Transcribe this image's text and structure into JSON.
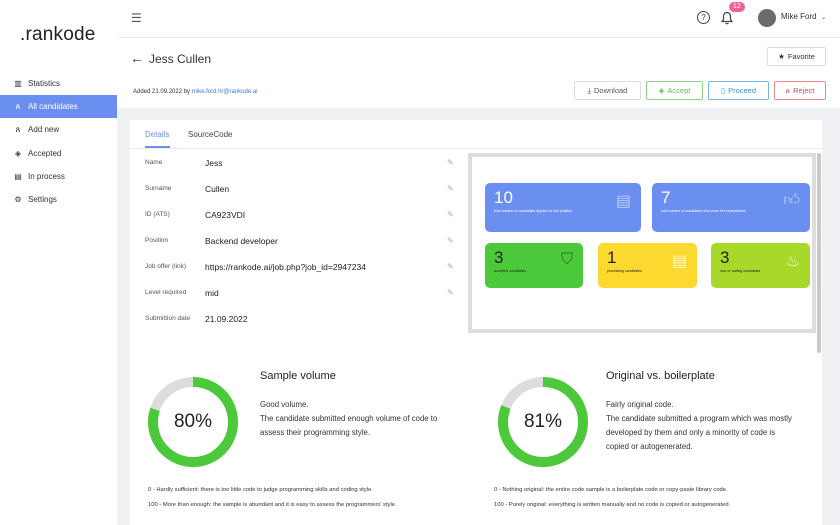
{
  "logo": ".rankode",
  "sidebar": {
    "items": [
      {
        "label": "Statistics",
        "icon": "bar-chart-icon"
      },
      {
        "label": "All candidates",
        "icon": "users-icon",
        "active": true
      },
      {
        "label": "Add new",
        "icon": "user-plus-icon"
      },
      {
        "label": "Accepted",
        "icon": "shield-check-icon"
      },
      {
        "label": "In process",
        "icon": "document-icon"
      },
      {
        "label": "Settings",
        "icon": "gear-icon"
      }
    ]
  },
  "topbar": {
    "notifications": "12",
    "user": "Mike Ford"
  },
  "header": {
    "title": "Jess Cullen",
    "added_prefix": "Added 21.09.2022 by",
    "added_by": "mike.ford.hr@rankode.ai",
    "favorite": "Favorite",
    "download": "Download",
    "accept": "Accept",
    "proceed": "Proceed",
    "reject": "Reject"
  },
  "colors": {
    "accent": "#6b8ff0",
    "accept": "#5cb85c",
    "proceed": "#3a8fd8",
    "reject": "#e04848",
    "green": "#4cc93a",
    "yellow": "#fcd92f",
    "lime": "#a8d92a"
  },
  "tabs": [
    "Details",
    "SourceCode"
  ],
  "details": [
    {
      "label": "Name",
      "value": "Jess"
    },
    {
      "label": "Surname",
      "value": "Cullen"
    },
    {
      "label": "ID (ATS)",
      "value": "CA923VDI"
    },
    {
      "label": "Position",
      "value": "Backend developer"
    },
    {
      "label": "Job offer (link)",
      "value": "https://rankode.ai/job.php?job_id=2947234"
    },
    {
      "label": "Level required",
      "value": "mid"
    },
    {
      "label": "Submittion date",
      "value": "21.09.2022"
    }
  ],
  "stats": [
    {
      "number": "10",
      "desc": "total number of candidates applied for this position",
      "icon": "resume-icon"
    },
    {
      "number": "7",
      "desc": "total number of candidates who cover the expectations",
      "icon": "thumbs-up-icon"
    },
    {
      "number": "3",
      "desc": "accepted candidates",
      "icon": "shield-check-icon"
    },
    {
      "number": "1",
      "desc": "processing candidates",
      "icon": "document-search-icon"
    },
    {
      "number": "3",
      "desc": "new or waiting candidates",
      "icon": "flame-icon"
    }
  ],
  "metrics": [
    {
      "value": 80,
      "label": "80%",
      "title": "Sample volume",
      "summary": "Good volume.",
      "text": "The candidate submitted enough volume of code to assess their programming style.",
      "note0": "0 - Hardly sufficient: there is too little code to judge programming skills and coding style.",
      "note100": "100 - More than enough: the sample is abundant and it is easy to assess the programmers' style."
    },
    {
      "value": 81,
      "label": "81%",
      "title": "Original vs. boilerplate",
      "summary": "Fairly original code.",
      "text": "The candidate submitted a program which was mostly developed by them and only a minority of code is copied or autogenerated.",
      "note0": "0 - Nothing original: the entire code sample is a boilerplate code or copy-paste library code.",
      "note100": "100 - Purely original: everything is written manually and no code is copied or autogenerated."
    }
  ]
}
